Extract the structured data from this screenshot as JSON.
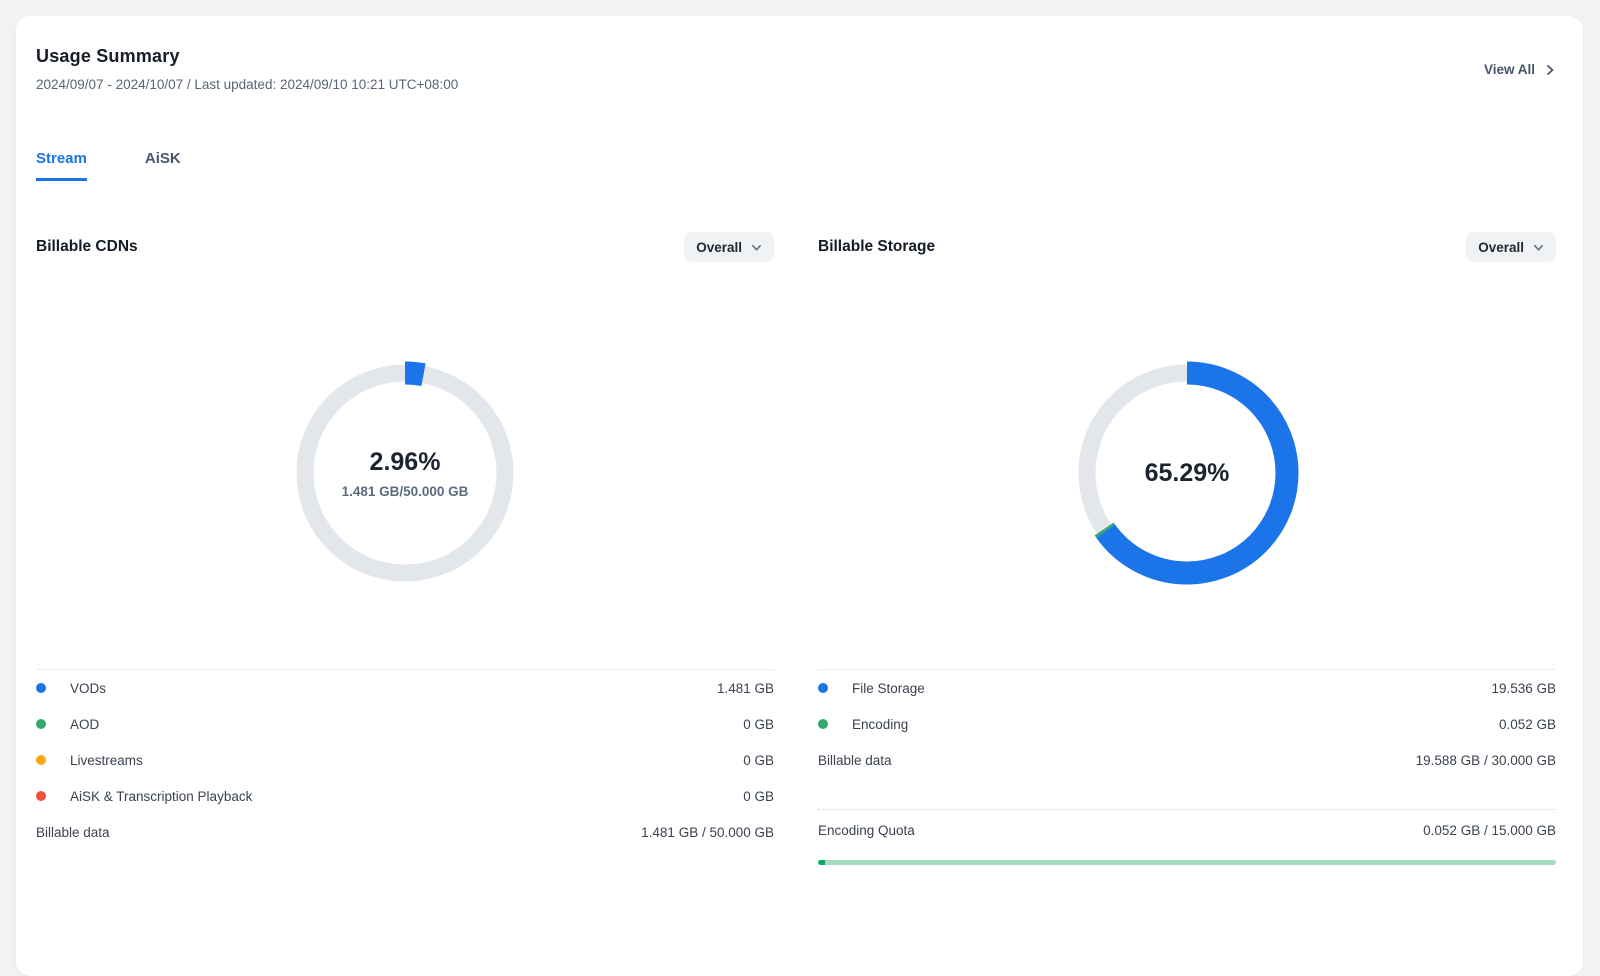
{
  "header": {
    "title": "Usage Summary",
    "subtitle": "2024/09/07 - 2024/10/07 / Last updated: 2024/09/10 10:21 UTC+08:00",
    "view_all_label": "View All"
  },
  "tabs": [
    {
      "label": "Stream",
      "active": true
    },
    {
      "label": "AiSK",
      "active": false
    }
  ],
  "colors": {
    "accent_blue": "#1B74E8",
    "ring_gray": "#E3E6EA",
    "green": "#34A871",
    "orange": "#FBA50F",
    "red": "#F2503B",
    "progress_track": "#A5D9C0",
    "progress_fill": "#12A569",
    "tab_active": "#1B74E8"
  },
  "chart_data": [
    {
      "type": "pie",
      "variant": "donut",
      "title": "Billable CDNs",
      "filter": "Overall",
      "center_value": "2.96%",
      "center_sub": "1.481 GB/50.000 GB",
      "used_percent": 2.96,
      "total_gb": 50.0,
      "segments": [
        {
          "label": "VODs",
          "value_gb": 1.481,
          "display": "1.481 GB",
          "color": "#1B74E8"
        },
        {
          "label": "AOD",
          "value_gb": 0,
          "display": "0 GB",
          "color": "#34A871"
        },
        {
          "label": "Livestreams",
          "value_gb": 0,
          "display": "0 GB",
          "color": "#FBA50F"
        },
        {
          "label": "AiSK & Transcription Playback",
          "value_gb": 0,
          "display": "0 GB",
          "color": "#F2503B"
        }
      ],
      "footer": {
        "label": "Billable data",
        "value": "1.481 GB / 50.000 GB"
      }
    },
    {
      "type": "pie",
      "variant": "donut",
      "title": "Billable Storage",
      "filter": "Overall",
      "center_value": "65.29%",
      "used_percent": 65.29,
      "total_gb": 30.0,
      "segments": [
        {
          "label": "File Storage",
          "value_gb": 19.536,
          "display": "19.536 GB",
          "color": "#1B74E8"
        },
        {
          "label": "Encoding",
          "value_gb": 0.052,
          "display": "0.052 GB",
          "color": "#34A871"
        }
      ],
      "footer": {
        "label": "Billable data",
        "value": "19.588 GB / 30.000 GB"
      },
      "quota": {
        "label": "Encoding Quota",
        "value": "0.052 GB / 15.000 GB",
        "used_gb": 0.052,
        "total_gb": 15.0
      }
    }
  ]
}
